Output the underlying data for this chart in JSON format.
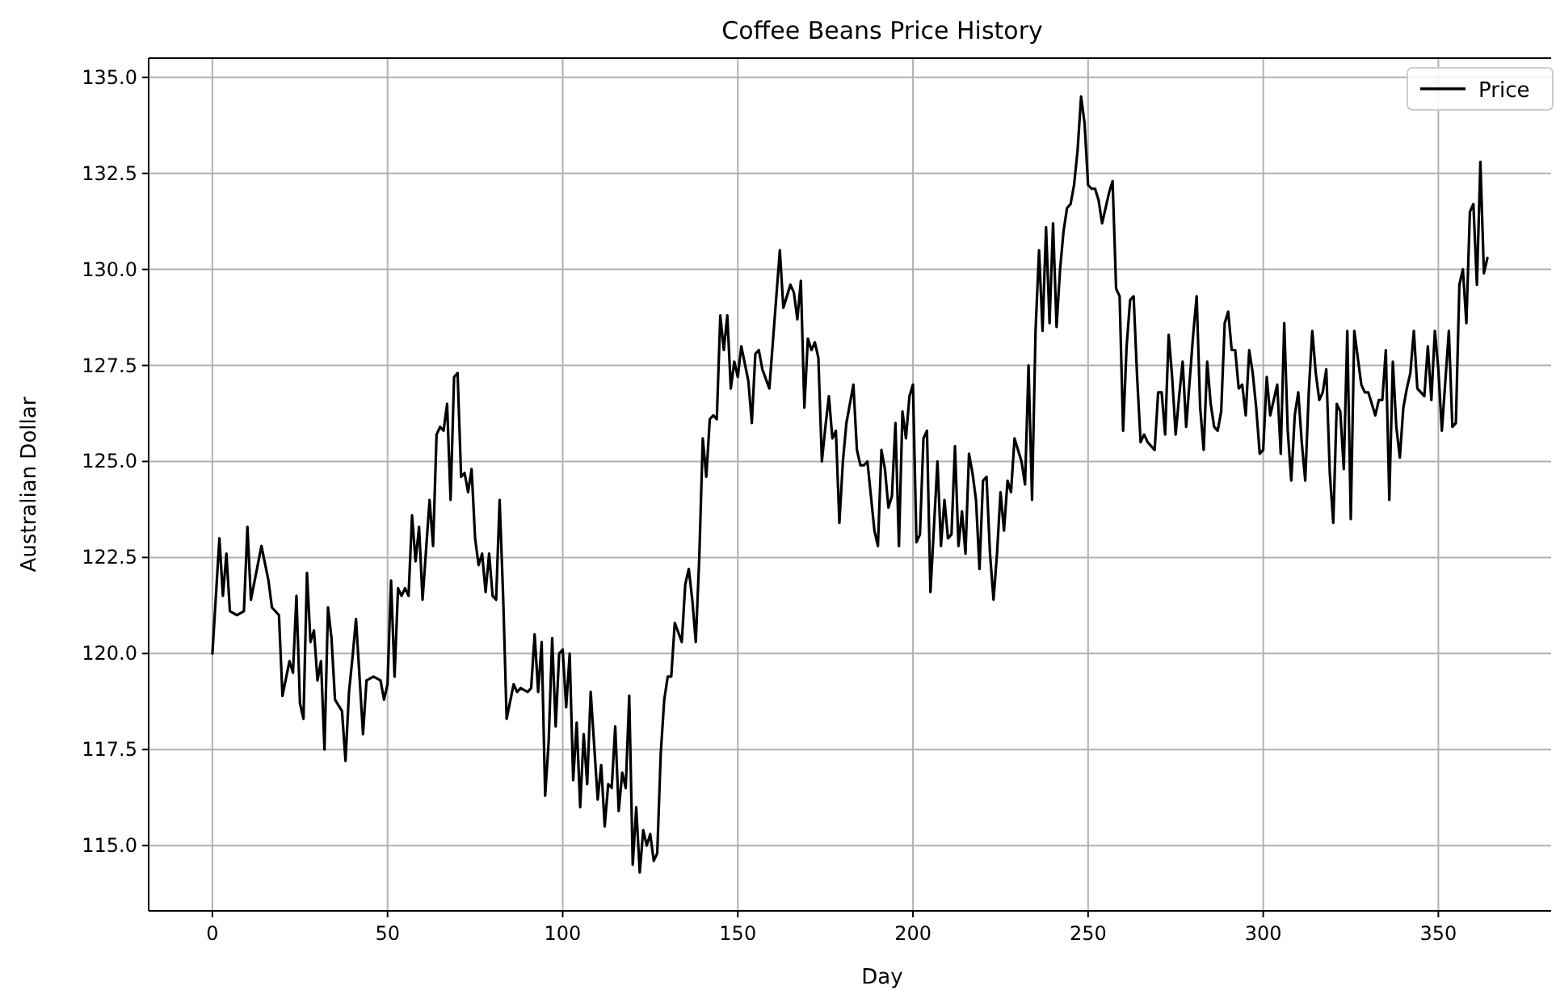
{
  "chart_data": {
    "type": "line",
    "title": "Coffee Beans Price History",
    "xlabel": "Day",
    "ylabel": "Australian Dollar",
    "xlim": [
      -18.2,
      382.2
    ],
    "xticks": [
      0,
      50,
      100,
      150,
      200,
      250,
      300,
      350
    ],
    "ylim": [
      113.3,
      135.5
    ],
    "yticks": [
      {
        "value": 115,
        "label": "115.0"
      },
      {
        "value": 117.5,
        "label": "117.5"
      },
      {
        "value": 120,
        "label": "120.0"
      },
      {
        "value": 122.5,
        "label": "122.5"
      },
      {
        "value": 125,
        "label": "125.0"
      },
      {
        "value": 127.5,
        "label": "127.5"
      },
      {
        "value": 130,
        "label": "130.0"
      },
      {
        "value": 132.5,
        "label": "132.5"
      },
      {
        "value": 135,
        "label": "135.0"
      }
    ],
    "grid": true,
    "legend": "top right",
    "marker": "none",
    "line_style": "solid",
    "series": [
      {
        "name": "Price",
        "color": "#000000",
        "x": [
          0,
          2,
          3,
          4,
          5,
          7,
          9,
          10,
          11,
          14,
          16,
          17,
          19,
          20,
          22,
          23,
          24,
          25,
          26,
          27,
          28,
          29,
          30,
          31,
          32,
          33,
          34,
          35,
          37,
          38,
          39,
          40,
          41,
          42,
          43,
          44,
          46,
          48,
          49,
          50,
          51,
          52,
          53,
          54,
          55,
          56,
          57,
          58,
          59,
          60,
          62,
          63,
          64,
          65,
          66,
          67,
          68,
          69,
          70,
          71,
          72,
          73,
          74,
          75,
          76,
          77,
          78,
          79,
          80,
          81,
          82,
          83,
          84,
          86,
          87,
          88,
          90,
          91,
          92,
          93,
          94,
          95,
          96,
          97,
          98,
          99,
          100,
          101,
          102,
          103,
          104,
          105,
          106,
          107,
          108,
          110,
          111,
          112,
          113,
          114,
          115,
          116,
          117,
          118,
          119,
          120,
          121,
          122,
          123,
          124,
          125,
          126,
          127,
          128,
          129,
          130,
          131,
          132,
          134,
          135,
          136,
          137,
          138,
          139,
          140,
          141,
          142,
          143,
          144,
          145,
          146,
          147,
          148,
          149,
          150,
          151,
          153,
          154,
          155,
          156,
          157,
          159,
          160,
          162,
          163,
          164,
          165,
          166,
          167,
          168,
          169,
          170,
          171,
          172,
          173,
          174,
          175,
          176,
          177,
          178,
          179,
          180,
          181,
          183,
          184,
          185,
          186,
          187,
          188,
          189,
          190,
          191,
          192,
          193,
          194,
          195,
          196,
          197,
          198,
          199,
          200,
          201,
          202,
          203,
          204,
          205,
          207,
          208,
          209,
          210,
          211,
          212,
          213,
          214,
          215,
          216,
          217,
          218,
          219,
          220,
          221,
          222,
          223,
          224,
          225,
          226,
          227,
          228,
          229,
          231,
          232,
          233,
          234,
          235,
          236,
          237,
          238,
          239,
          240,
          241,
          242,
          243,
          244,
          245,
          246,
          247,
          248,
          249,
          250,
          251,
          252,
          253,
          254,
          256,
          257,
          258,
          259,
          260,
          261,
          262,
          263,
          264,
          265,
          266,
          267,
          268,
          269,
          270,
          271,
          272,
          273,
          274,
          275,
          276,
          277,
          278,
          280,
          281,
          282,
          283,
          284,
          285,
          286,
          287,
          288,
          289,
          290,
          291,
          292,
          293,
          294,
          295,
          296,
          297,
          298,
          299,
          300,
          301,
          302,
          304,
          305,
          306,
          307,
          308,
          309,
          310,
          311,
          312,
          313,
          314,
          315,
          316,
          317,
          318,
          319,
          320,
          321,
          322,
          323,
          324,
          325,
          326,
          328,
          329,
          330,
          331,
          332,
          333,
          334,
          335,
          336,
          337,
          338,
          339,
          340,
          341,
          342,
          343,
          344,
          345,
          346,
          347,
          348,
          349,
          350,
          351,
          353,
          354,
          355,
          356,
          357,
          358,
          359,
          360,
          361,
          362,
          363,
          364
        ],
        "values": [
          120.0,
          123.0,
          121.5,
          122.6,
          121.1,
          121.0,
          121.1,
          123.3,
          121.4,
          122.8,
          121.9,
          121.2,
          121.0,
          118.9,
          119.8,
          119.5,
          121.5,
          118.7,
          118.3,
          122.1,
          120.3,
          120.6,
          119.3,
          119.8,
          117.5,
          121.2,
          120.4,
          118.8,
          118.5,
          117.2,
          119.0,
          119.9,
          120.9,
          119.4,
          117.9,
          119.3,
          119.4,
          119.3,
          118.8,
          119.2,
          121.9,
          119.4,
          121.7,
          121.5,
          121.7,
          121.5,
          123.6,
          122.4,
          123.3,
          121.4,
          124.0,
          122.8,
          125.7,
          125.9,
          125.8,
          126.5,
          124.0,
          127.2,
          127.3,
          124.6,
          124.7,
          124.2,
          124.8,
          123.0,
          122.3,
          122.6,
          121.6,
          122.6,
          121.5,
          121.4,
          124.0,
          121.5,
          118.3,
          119.2,
          119.0,
          119.1,
          119.0,
          119.1,
          120.5,
          119.0,
          120.3,
          116.3,
          117.7,
          120.4,
          118.1,
          120.0,
          120.1,
          118.6,
          120.0,
          116.7,
          118.2,
          116.0,
          117.9,
          116.6,
          119.0,
          116.2,
          117.1,
          115.5,
          116.6,
          116.5,
          118.1,
          115.9,
          116.9,
          116.5,
          118.9,
          114.5,
          116.0,
          114.3,
          115.4,
          115.0,
          115.3,
          114.6,
          114.8,
          117.4,
          118.8,
          119.4,
          119.4,
          120.8,
          120.3,
          121.8,
          122.2,
          121.4,
          120.3,
          122.5,
          125.6,
          124.6,
          126.1,
          126.2,
          126.1,
          128.8,
          127.9,
          128.8,
          126.9,
          127.6,
          127.2,
          128.0,
          127.1,
          126.0,
          127.8,
          127.9,
          127.4,
          126.9,
          128.1,
          130.5,
          129.0,
          129.3,
          129.6,
          129.4,
          128.7,
          129.7,
          126.4,
          128.2,
          127.9,
          128.1,
          127.7,
          125.0,
          125.9,
          126.7,
          125.6,
          125.8,
          123.4,
          125.0,
          126.0,
          127.0,
          125.3,
          124.9,
          124.9,
          125.0,
          124.1,
          123.2,
          122.8,
          125.3,
          124.8,
          123.8,
          124.1,
          126.0,
          122.8,
          126.3,
          125.6,
          126.7,
          127.0,
          122.9,
          123.1,
          125.6,
          125.8,
          121.6,
          125.0,
          122.8,
          124.0,
          123.0,
          123.1,
          125.4,
          122.8,
          123.7,
          122.6,
          125.2,
          124.7,
          124.0,
          122.2,
          124.5,
          124.6,
          122.6,
          121.4,
          122.6,
          124.2,
          123.2,
          124.5,
          124.2,
          125.6,
          125.0,
          124.4,
          127.5,
          124.0,
          128.4,
          130.5,
          128.4,
          131.1,
          128.6,
          131.2,
          128.5,
          130.0,
          131.0,
          131.6,
          131.7,
          132.2,
          133.1,
          134.5,
          133.8,
          132.2,
          132.1,
          132.1,
          131.8,
          131.2,
          132.0,
          132.3,
          129.5,
          129.3,
          125.8,
          128.0,
          129.2,
          129.3,
          127.2,
          125.5,
          125.7,
          125.5,
          125.4,
          125.3,
          126.8,
          126.8,
          125.7,
          128.3,
          127.2,
          125.7,
          126.7,
          127.6,
          125.9,
          128.3,
          129.3,
          126.4,
          125.3,
          127.6,
          126.5,
          125.9,
          125.8,
          126.3,
          128.6,
          128.9,
          127.9,
          127.9,
          126.9,
          127.0,
          126.2,
          127.9,
          127.3,
          126.4,
          125.2,
          125.3,
          127.2,
          126.2,
          127.0,
          125.2,
          128.6,
          125.8,
          124.5,
          126.2,
          126.8,
          125.5,
          124.5,
          126.8,
          128.4,
          127.3,
          126.6,
          126.8,
          127.4,
          124.7,
          123.4,
          126.5,
          126.3,
          124.8,
          128.4,
          123.5,
          128.4,
          127.0,
          126.8,
          126.8,
          126.5,
          126.2,
          126.6,
          126.6,
          127.9,
          124.0,
          127.6,
          125.9,
          125.1,
          126.4,
          126.9,
          127.3,
          128.4,
          126.9,
          126.8,
          126.7,
          128.0,
          126.6,
          128.4,
          127.4,
          125.8,
          128.4,
          125.9,
          126.0,
          129.6,
          130.0,
          128.6,
          131.5,
          131.7,
          129.6,
          132.8,
          129.9,
          130.3
        ]
      }
    ]
  }
}
